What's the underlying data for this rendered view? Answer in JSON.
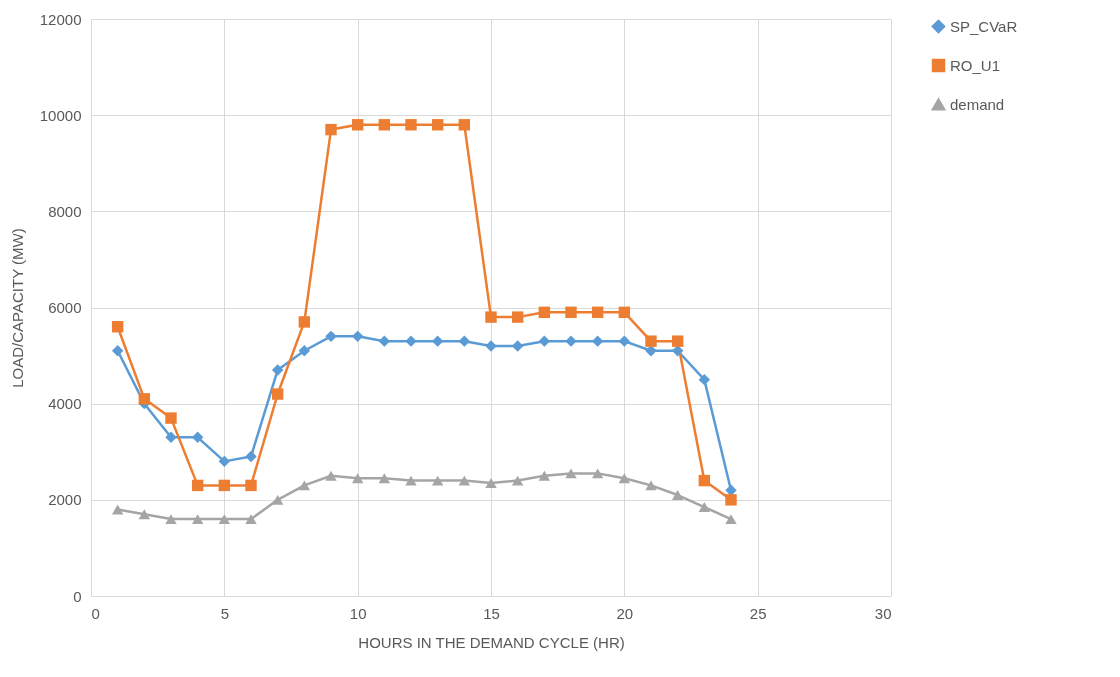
{
  "chart_data": {
    "type": "line",
    "xlabel": "HOURS IN THE DEMAND CYCLE (HR)",
    "ylabel": "LOAD/CAPACITY (MW)",
    "x": [
      1,
      2,
      3,
      4,
      5,
      6,
      7,
      8,
      9,
      10,
      11,
      12,
      13,
      14,
      15,
      16,
      17,
      18,
      19,
      20,
      21,
      22,
      23,
      24
    ],
    "xlim": [
      0,
      30
    ],
    "xticks": [
      0,
      5,
      10,
      15,
      20,
      25,
      30
    ],
    "ylim": [
      0,
      12000
    ],
    "yticks": [
      0,
      2000,
      4000,
      6000,
      8000,
      10000,
      12000
    ],
    "grid": true,
    "legend": "right",
    "series": [
      {
        "name": "SP_CVaR",
        "color": "#5b9bd5",
        "marker": "diamond",
        "values": [
          5100,
          4000,
          3300,
          3300,
          2800,
          2900,
          4700,
          5100,
          5400,
          5400,
          5300,
          5300,
          5300,
          5300,
          5200,
          5200,
          5300,
          5300,
          5300,
          5300,
          5100,
          5100,
          4500,
          2200
        ]
      },
      {
        "name": "RO_U1",
        "color": "#ed7d31",
        "marker": "square",
        "values": [
          5600,
          4100,
          3700,
          2300,
          2300,
          2300,
          4200,
          5700,
          9700,
          9800,
          9800,
          9800,
          9800,
          9800,
          5800,
          5800,
          5900,
          5900,
          5900,
          5900,
          5300,
          5300,
          2400,
          2000
        ]
      },
      {
        "name": "demand",
        "color": "#a5a5a5",
        "marker": "triangle",
        "values": [
          1800,
          1700,
          1600,
          1600,
          1600,
          1600,
          2000,
          2300,
          2500,
          2450,
          2450,
          2400,
          2400,
          2400,
          2350,
          2400,
          2500,
          2550,
          2550,
          2450,
          2300,
          2100,
          1850,
          1600
        ]
      }
    ]
  }
}
